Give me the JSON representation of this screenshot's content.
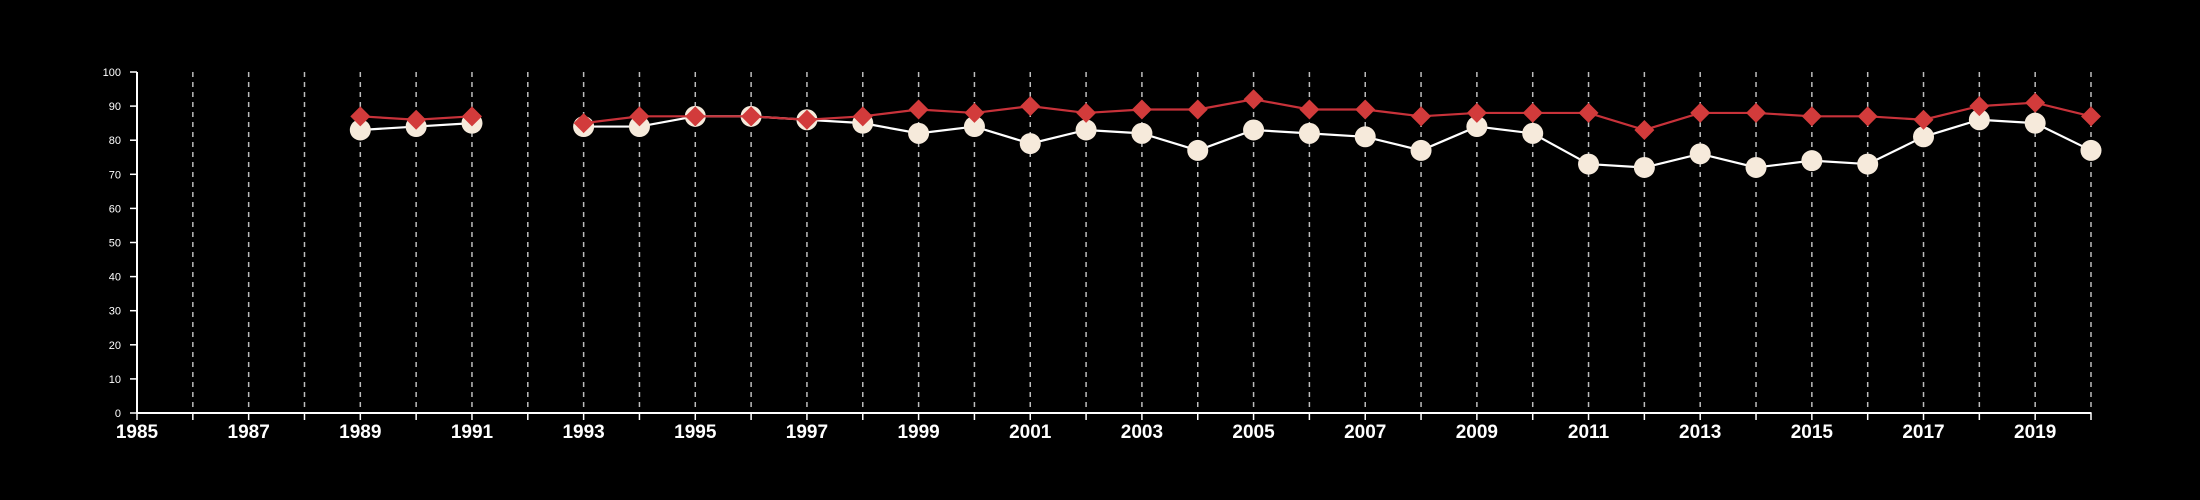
{
  "colors": {
    "background": "#000000",
    "axis": "#ffffff",
    "grid": "#bdbdbd",
    "series_1_line": "#c8323a",
    "series_1_marker": "#d23b3b",
    "series_2_line": "#ffffff",
    "series_2_marker": "#f6eadb"
  },
  "chart_data": {
    "type": "line",
    "title": "",
    "xlabel": "",
    "ylabel": "",
    "xlim": [
      1985,
      2020
    ],
    "ylim": [
      0,
      100
    ],
    "grid": "vertical dashed lines at each year",
    "x": [
      1989,
      1990,
      1991,
      1993,
      1994,
      1995,
      1996,
      1997,
      1998,
      1999,
      2000,
      2001,
      2002,
      2003,
      2004,
      2005,
      2006,
      2007,
      2008,
      2009,
      2010,
      2011,
      2012,
      2013,
      2014,
      2015,
      2016,
      2017,
      2018,
      2019,
      2020
    ],
    "xticks": [
      "1985",
      "1987",
      "1989",
      "1991",
      "1993",
      "1995",
      "1997",
      "1999",
      "2001",
      "2003",
      "2005",
      "2007",
      "2009",
      "2011",
      "2013",
      "2015",
      "2017",
      "2019"
    ],
    "yticks": [
      "0",
      "10",
      "20",
      "30",
      "40",
      "50",
      "60",
      "70",
      "80",
      "90",
      "100"
    ],
    "series": [
      {
        "marker": "diamond",
        "values": [
          87,
          86,
          87,
          85,
          87,
          87,
          87,
          86,
          87,
          89,
          88,
          90,
          88,
          89,
          89,
          92,
          89,
          89,
          87,
          88,
          88,
          88,
          83,
          88,
          88,
          87,
          87,
          86,
          90,
          91,
          87
        ]
      },
      {
        "marker": "circle",
        "values": [
          83,
          84,
          85,
          84,
          84,
          87,
          87,
          86,
          85,
          82,
          84,
          79,
          83,
          82,
          77,
          83,
          82,
          81,
          77,
          84,
          82,
          73,
          72,
          76,
          72,
          74,
          73,
          81,
          86,
          85,
          77
        ]
      }
    ]
  }
}
